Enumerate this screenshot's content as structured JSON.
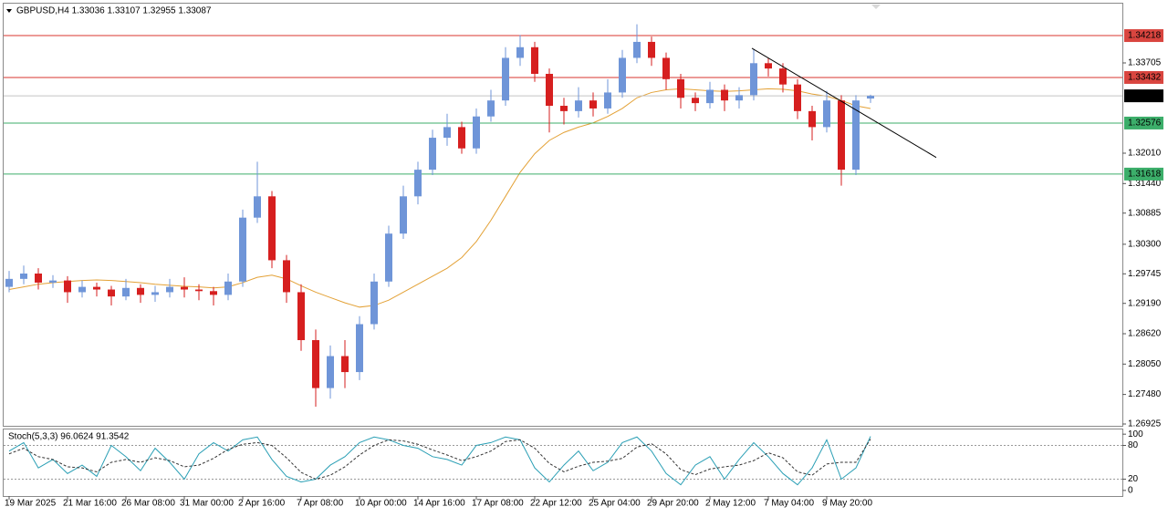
{
  "chart_data": [
    {
      "type": "candlestick",
      "title": "GBPUSD,H4  1.33036 1.33107 1.32955 1.33087",
      "categories": [
        "19 Mar 2025",
        null,
        null,
        null,
        "21 Mar 16:00",
        null,
        null,
        null,
        "26 Mar 08:00",
        null,
        null,
        null,
        "31 Mar 00:00",
        null,
        null,
        null,
        "2 Apr 16:00",
        null,
        null,
        null,
        "7 Apr 08:00",
        null,
        null,
        null,
        "10 Apr 00:00",
        null,
        null,
        null,
        "14 Apr 16:00",
        null,
        null,
        null,
        "17 Apr 08:00",
        null,
        null,
        null,
        "22 Apr 12:00",
        null,
        null,
        null,
        "25 Apr 04:00",
        null,
        null,
        null,
        "29 Apr 20:00",
        null,
        null,
        null,
        "2 May 12:00",
        null,
        null,
        null,
        "7 May 04:00",
        null,
        null,
        null,
        "9 May 20:00",
        null,
        null,
        null
      ],
      "open": [
        1.295,
        1.2965,
        1.2975,
        1.2958,
        1.2962,
        1.294,
        1.295,
        1.2945,
        1.2932,
        1.2948,
        1.2935,
        1.294,
        1.295,
        1.2945,
        1.2942,
        1.2935,
        1.296,
        1.308,
        1.312,
        1.3,
        1.294,
        1.285,
        1.276,
        1.282,
        1.279,
        1.288,
        1.296,
        1.305,
        1.312,
        1.317,
        1.323,
        1.325,
        1.321,
        1.327,
        1.33,
        1.338,
        1.34,
        1.335,
        1.329,
        1.328,
        1.33,
        1.3285,
        1.3315,
        1.338,
        1.341,
        1.338,
        1.334,
        1.3305,
        1.3295,
        1.332,
        1.33,
        1.331,
        1.337,
        1.336,
        1.333,
        1.328,
        1.325,
        1.33,
        1.317,
        1.33036
      ],
      "high": [
        1.298,
        1.299,
        1.2985,
        1.2972,
        1.297,
        1.2962,
        1.2958,
        1.2952,
        1.2965,
        1.2955,
        1.2952,
        1.2965,
        1.2968,
        1.2955,
        1.295,
        1.2975,
        1.3095,
        1.3185,
        1.313,
        1.301,
        1.2955,
        1.287,
        1.284,
        1.285,
        1.2895,
        1.2975,
        1.3065,
        1.314,
        1.3185,
        1.3245,
        1.3275,
        1.326,
        1.3285,
        1.332,
        1.34,
        1.3423,
        1.341,
        1.336,
        1.3305,
        1.3325,
        1.3315,
        1.334,
        1.3395,
        1.3443,
        1.342,
        1.339,
        1.335,
        1.3315,
        1.3335,
        1.333,
        1.3325,
        1.3397,
        1.338,
        1.337,
        1.334,
        1.329,
        1.3318,
        1.331,
        1.331,
        1.33107
      ],
      "low": [
        1.294,
        1.2955,
        1.2945,
        1.2948,
        1.292,
        1.293,
        1.2932,
        1.2915,
        1.2925,
        1.292,
        1.2922,
        1.293,
        1.293,
        1.2925,
        1.2915,
        1.2925,
        1.295,
        1.307,
        1.2985,
        1.292,
        1.283,
        1.2725,
        1.274,
        1.276,
        1.2775,
        1.287,
        1.295,
        1.304,
        1.3105,
        1.316,
        1.3215,
        1.32,
        1.32,
        1.326,
        1.329,
        1.3365,
        1.3335,
        1.324,
        1.3255,
        1.3268,
        1.327,
        1.3275,
        1.3305,
        1.337,
        1.3365,
        1.332,
        1.3285,
        1.328,
        1.3285,
        1.328,
        1.3285,
        1.33,
        1.3345,
        1.3315,
        1.3265,
        1.3225,
        1.324,
        1.314,
        1.316,
        1.32955
      ],
      "close": [
        1.2965,
        1.2975,
        1.2958,
        1.2962,
        1.294,
        1.295,
        1.2945,
        1.2932,
        1.2948,
        1.2935,
        1.294,
        1.295,
        1.2945,
        1.2942,
        1.2935,
        1.296,
        1.308,
        1.312,
        1.3,
        1.294,
        1.285,
        1.276,
        1.282,
        1.279,
        1.288,
        1.296,
        1.305,
        1.312,
        1.317,
        1.323,
        1.325,
        1.321,
        1.327,
        1.33,
        1.338,
        1.34,
        1.335,
        1.329,
        1.328,
        1.33,
        1.3285,
        1.3315,
        1.338,
        1.341,
        1.338,
        1.334,
        1.3305,
        1.3295,
        1.332,
        1.33,
        1.331,
        1.337,
        1.336,
        1.333,
        1.328,
        1.325,
        1.33,
        1.317,
        1.33,
        1.33087
      ],
      "up_color": "#6f95d8",
      "down_color": "#d61f1f",
      "overlays": [
        {
          "color": "#e3a136",
          "values": [
            1.2945,
            1.295,
            1.2955,
            1.2958,
            1.296,
            1.2962,
            1.2963,
            1.2962,
            1.296,
            1.2958,
            1.2955,
            1.2953,
            1.2951,
            1.295,
            1.2948,
            1.295,
            1.2958,
            1.2968,
            1.2972,
            1.2965,
            1.2952,
            1.294,
            1.293,
            1.292,
            1.2912,
            1.2915,
            1.2925,
            1.294,
            1.2955,
            1.297,
            1.2985,
            1.3005,
            1.3035,
            1.3075,
            1.312,
            1.3165,
            1.32,
            1.3225,
            1.324,
            1.325,
            1.3258,
            1.327,
            1.3285,
            1.3305,
            1.3315,
            1.332,
            1.3322,
            1.332,
            1.3318,
            1.3317,
            1.3318,
            1.332,
            1.3322,
            1.3321,
            1.3318,
            1.3312,
            1.3308,
            1.33,
            1.329,
            1.3285
          ]
        }
      ],
      "trendline": {
        "color": "#000000",
        "start": [
          50.875,
          1.3398
        ],
        "end": [
          63.5,
          1.3193
        ]
      },
      "levels": [
        {
          "value": 1.34218,
          "color": "#d9362f",
          "box": "#d9453f"
        },
        {
          "value": 1.33432,
          "color": "#d9362f",
          "box": "#d9453f"
        },
        {
          "value": 1.33087,
          "color": "#c4c4c4",
          "box": "#000000"
        },
        {
          "value": 1.32576,
          "color": "#3cae6a",
          "box": "#3cae6a"
        },
        {
          "value": 1.31618,
          "color": "#3cae6a",
          "box": "#3cae6a"
        }
      ],
      "ylim": [
        1.26891,
        1.34818
      ],
      "yticks": [
        1.33705,
        {
          "value": 1.3201,
          "label": "1.32010"
        },
        {
          "value": 1.3144,
          "label": "1.31440"
        },
        1.30885,
        {
          "value": 1.303,
          "label": "1.30300"
        },
        1.29745,
        {
          "value": 1.2919,
          "label": "1.29190"
        },
        {
          "value": 1.2862,
          "label": "1.28620"
        },
        {
          "value": 1.2805,
          "label": "1.28050"
        },
        {
          "value": 1.2748,
          "label": "1.27480"
        },
        1.26925
      ]
    },
    {
      "type": "line",
      "title": "Stoch(5,3,3) 96.0624 91.3542",
      "series": [
        {
          "color": "#2a9fb5",
          "dash": false,
          "values": [
            70,
            85,
            40,
            55,
            30,
            45,
            25,
            80,
            60,
            35,
            75,
            50,
            20,
            65,
            85,
            70,
            90,
            95,
            55,
            25,
            15,
            20,
            45,
            60,
            85,
            95,
            90,
            80,
            75,
            60,
            55,
            45,
            80,
            85,
            95,
            90,
            40,
            15,
            45,
            70,
            35,
            50,
            85,
            95,
            70,
            30,
            10,
            45,
            60,
            20,
            55,
            85,
            60,
            30,
            10,
            40,
            90,
            20,
            40,
            96.0624
          ]
        },
        {
          "color": "#333333",
          "dash": true,
          "values": [
            65,
            75,
            60,
            55,
            42,
            40,
            33,
            50,
            55,
            50,
            58,
            53,
            42,
            45,
            57,
            73,
            82,
            85,
            80,
            58,
            32,
            20,
            27,
            42,
            63,
            80,
            90,
            88,
            82,
            72,
            63,
            53,
            60,
            70,
            87,
            90,
            75,
            48,
            33,
            43,
            50,
            52,
            57,
            77,
            83,
            65,
            37,
            28,
            38,
            42,
            45,
            53,
            67,
            58,
            33,
            27,
            47,
            50,
            50,
            91.3542
          ]
        }
      ],
      "levels": [
        20,
        80
      ],
      "ylim": [
        -10,
        110
      ],
      "yticks": [
        100,
        80,
        20,
        0
      ]
    }
  ]
}
